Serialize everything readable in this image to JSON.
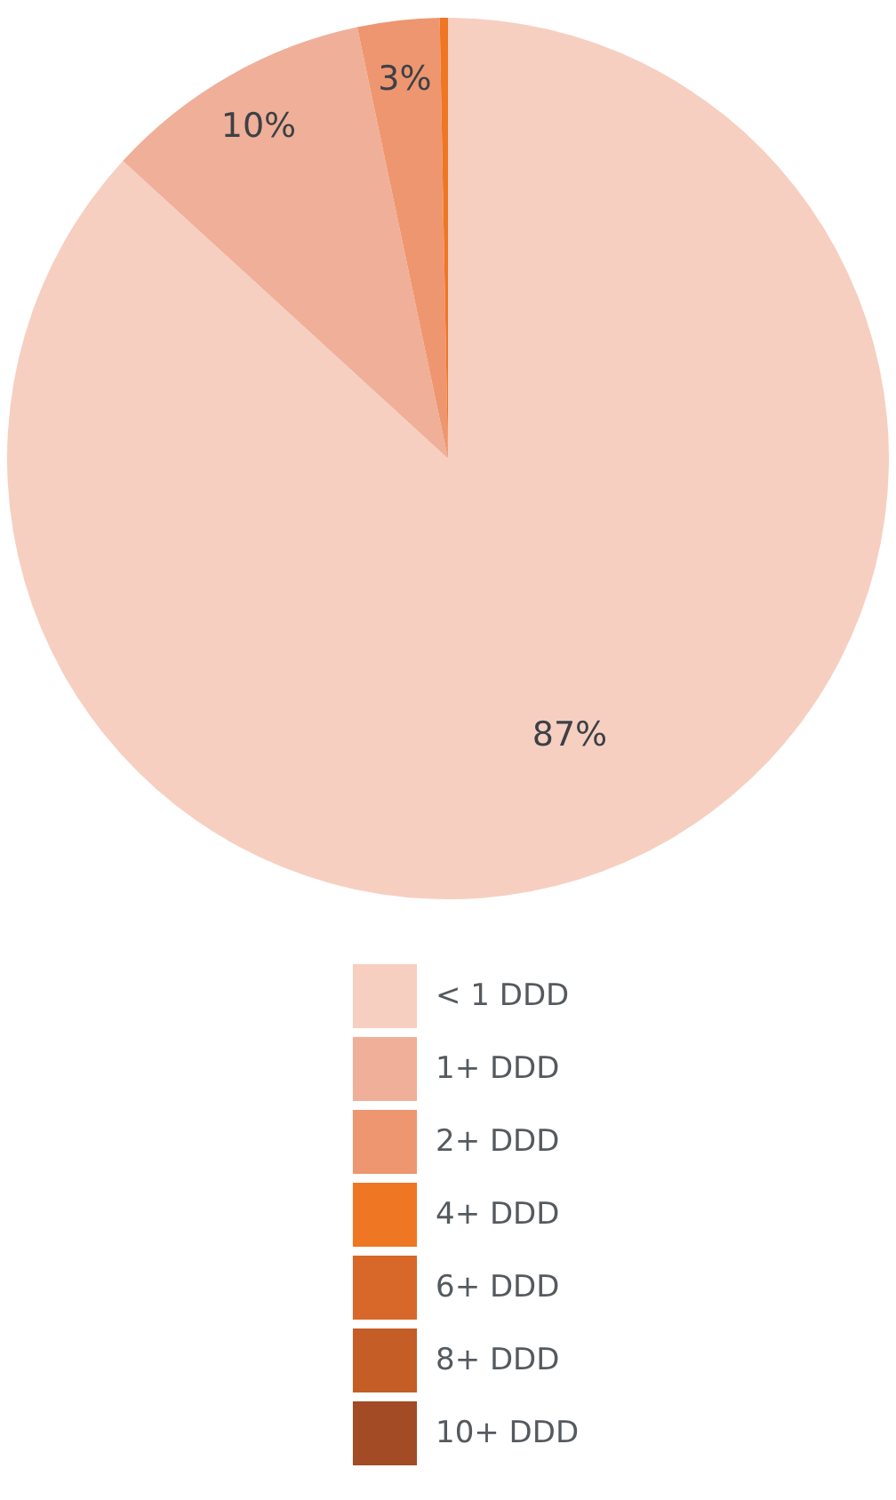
{
  "chart_data": {
    "type": "pie",
    "categories": [
      "< 1 DDD",
      "1+ DDD",
      "2+ DDD",
      "4+ DDD",
      "6+ DDD",
      "8+ DDD",
      "10+ DDD"
    ],
    "values": [
      86.8,
      9.9,
      3.0,
      0.3,
      0,
      0,
      0
    ],
    "value_labels": [
      "87%",
      "10%",
      "3%",
      null,
      null,
      null,
      null
    ],
    "colors": [
      "#f6cfc1",
      "#f0af98",
      "#ee9670",
      "#ef7622",
      "#d8672a",
      "#c55d27",
      "#a34b24"
    ],
    "legend": "bottom"
  }
}
